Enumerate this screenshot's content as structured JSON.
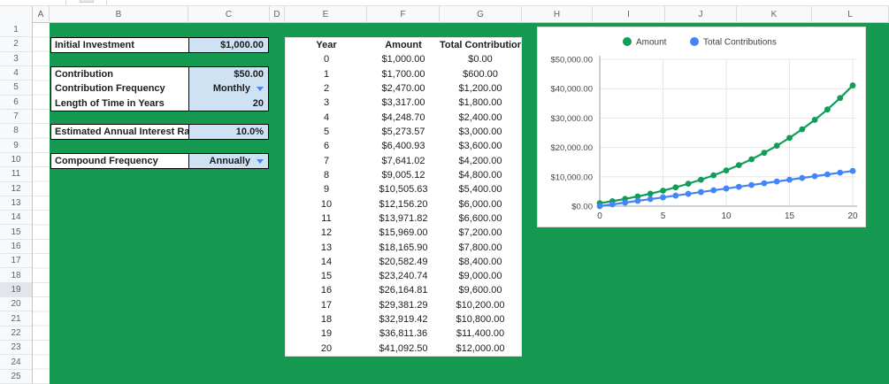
{
  "grid": {
    "column_headers": [
      "A",
      "B",
      "C",
      "D",
      "E",
      "F",
      "G",
      "H",
      "I",
      "J",
      "K",
      "L"
    ],
    "row_headers": [
      "1",
      "2",
      "3",
      "4",
      "5",
      "6",
      "7",
      "8",
      "9",
      "10",
      "11",
      "12",
      "13",
      "14",
      "15",
      "16",
      "17",
      "18",
      "19",
      "20",
      "21",
      "22",
      "23",
      "24",
      "25"
    ],
    "highlighted_row": "19"
  },
  "inputs": {
    "groups": [
      {
        "rows": [
          {
            "label": "Initial Investment",
            "value": "$1,000.00",
            "dropdown": false
          }
        ]
      },
      {
        "rows": [
          {
            "label": "Contribution",
            "value": "$50.00",
            "dropdown": false
          },
          {
            "label": "Contribution Frequency",
            "value": "Monthly",
            "dropdown": true
          },
          {
            "label": "Length of Time in Years",
            "value": "20",
            "dropdown": false
          }
        ]
      },
      {
        "rows": [
          {
            "label": "Estimated Annual Interest Rate",
            "value": "10.0%",
            "dropdown": false
          }
        ]
      },
      {
        "rows": [
          {
            "label": "Compound Frequency",
            "value": "Annually",
            "dropdown": true
          }
        ]
      }
    ]
  },
  "table": {
    "headers": [
      "Year",
      "Amount",
      "Total Contributions"
    ],
    "rows": [
      [
        "0",
        "$1,000.00",
        "$0.00"
      ],
      [
        "1",
        "$1,700.00",
        "$600.00"
      ],
      [
        "2",
        "$2,470.00",
        "$1,200.00"
      ],
      [
        "3",
        "$3,317.00",
        "$1,800.00"
      ],
      [
        "4",
        "$4,248.70",
        "$2,400.00"
      ],
      [
        "5",
        "$5,273.57",
        "$3,000.00"
      ],
      [
        "6",
        "$6,400.93",
        "$3,600.00"
      ],
      [
        "7",
        "$7,641.02",
        "$4,200.00"
      ],
      [
        "8",
        "$9,005.12",
        "$4,800.00"
      ],
      [
        "9",
        "$10,505.63",
        "$5,400.00"
      ],
      [
        "10",
        "$12,156.20",
        "$6,000.00"
      ],
      [
        "11",
        "$13,971.82",
        "$6,600.00"
      ],
      [
        "12",
        "$15,969.00",
        "$7,200.00"
      ],
      [
        "13",
        "$18,165.90",
        "$7,800.00"
      ],
      [
        "14",
        "$20,582.49",
        "$8,400.00"
      ],
      [
        "15",
        "$23,240.74",
        "$9,000.00"
      ],
      [
        "16",
        "$26,164.81",
        "$9,600.00"
      ],
      [
        "17",
        "$29,381.29",
        "$10,200.00"
      ],
      [
        "18",
        "$32,919.42",
        "$10,800.00"
      ],
      [
        "19",
        "$36,811.36",
        "$11,400.00"
      ],
      [
        "20",
        "$41,092.50",
        "$12,000.00"
      ]
    ]
  },
  "chart_data": {
    "type": "line",
    "x": [
      0,
      1,
      2,
      3,
      4,
      5,
      6,
      7,
      8,
      9,
      10,
      11,
      12,
      13,
      14,
      15,
      16,
      17,
      18,
      19,
      20
    ],
    "series": [
      {
        "name": "Amount",
        "color": "#0f9d58",
        "values": [
          1000,
          1700,
          2470,
          3317,
          4248.7,
          5273.57,
          6400.93,
          7641.02,
          9005.12,
          10505.63,
          12156.2,
          13971.82,
          15969.0,
          18165.9,
          20582.49,
          23240.74,
          26164.81,
          29381.29,
          32919.42,
          36811.36,
          41092.5
        ]
      },
      {
        "name": "Total Contributions",
        "color": "#4285f4",
        "values": [
          0,
          600,
          1200,
          1800,
          2400,
          3000,
          3600,
          4200,
          4800,
          5400,
          6000,
          6600,
          7200,
          7800,
          8400,
          9000,
          9600,
          10200,
          10800,
          11400,
          12000
        ]
      }
    ],
    "ylim": [
      0,
      50000
    ],
    "ytick_step": 10000,
    "ytick_labels": [
      "$0.00",
      "$10,000.00",
      "$20,000.00",
      "$30,000.00",
      "$40,000.00",
      "$50,000.00"
    ],
    "xticks": [
      0,
      5,
      10,
      15,
      20
    ],
    "xtick_labels": [
      "0",
      "5",
      "10",
      "15",
      "20"
    ],
    "legend_position": "top",
    "grid": true,
    "marker": "circle"
  },
  "colors": {
    "sheet_fill_green": "#169a51",
    "input_cell_blue": "#cfe2f3",
    "header_bg": "#f8f9fa",
    "dropdown_arrow_blue": "#4285f4",
    "series_amount_green": "#0f9d58",
    "series_contrib_blue": "#4285f4"
  }
}
